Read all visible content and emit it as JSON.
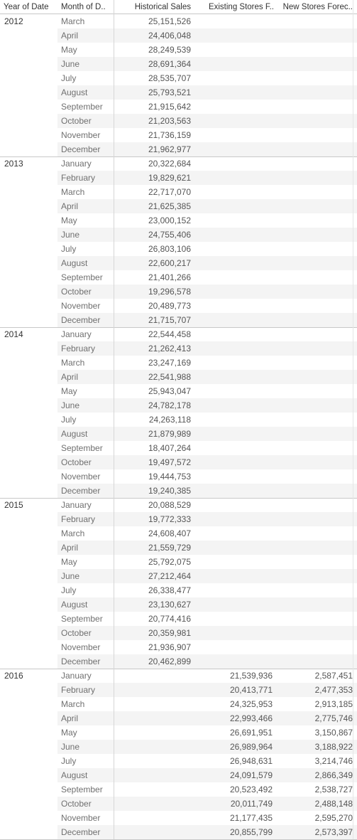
{
  "headers": {
    "year": "Year of Date",
    "month": "Month of D..",
    "historical": "Historical Sales",
    "existing": "Existing Stores F..",
    "new": "New Stores Forec.."
  },
  "years": [
    {
      "year": "2012",
      "rows": [
        {
          "month": "March",
          "historical": "25,151,526",
          "existing": "",
          "new": ""
        },
        {
          "month": "April",
          "historical": "24,406,048",
          "existing": "",
          "new": ""
        },
        {
          "month": "May",
          "historical": "28,249,539",
          "existing": "",
          "new": ""
        },
        {
          "month": "June",
          "historical": "28,691,364",
          "existing": "",
          "new": ""
        },
        {
          "month": "July",
          "historical": "28,535,707",
          "existing": "",
          "new": ""
        },
        {
          "month": "August",
          "historical": "25,793,521",
          "existing": "",
          "new": ""
        },
        {
          "month": "September",
          "historical": "21,915,642",
          "existing": "",
          "new": ""
        },
        {
          "month": "October",
          "historical": "21,203,563",
          "existing": "",
          "new": ""
        },
        {
          "month": "November",
          "historical": "21,736,159",
          "existing": "",
          "new": ""
        },
        {
          "month": "December",
          "historical": "21,962,977",
          "existing": "",
          "new": ""
        }
      ]
    },
    {
      "year": "2013",
      "rows": [
        {
          "month": "January",
          "historical": "20,322,684",
          "existing": "",
          "new": ""
        },
        {
          "month": "February",
          "historical": "19,829,621",
          "existing": "",
          "new": ""
        },
        {
          "month": "March",
          "historical": "22,717,070",
          "existing": "",
          "new": ""
        },
        {
          "month": "April",
          "historical": "21,625,385",
          "existing": "",
          "new": ""
        },
        {
          "month": "May",
          "historical": "23,000,152",
          "existing": "",
          "new": ""
        },
        {
          "month": "June",
          "historical": "24,755,406",
          "existing": "",
          "new": ""
        },
        {
          "month": "July",
          "historical": "26,803,106",
          "existing": "",
          "new": ""
        },
        {
          "month": "August",
          "historical": "22,600,217",
          "existing": "",
          "new": ""
        },
        {
          "month": "September",
          "historical": "21,401,266",
          "existing": "",
          "new": ""
        },
        {
          "month": "October",
          "historical": "19,296,578",
          "existing": "",
          "new": ""
        },
        {
          "month": "November",
          "historical": "20,489,773",
          "existing": "",
          "new": ""
        },
        {
          "month": "December",
          "historical": "21,715,707",
          "existing": "",
          "new": ""
        }
      ]
    },
    {
      "year": "2014",
      "rows": [
        {
          "month": "January",
          "historical": "22,544,458",
          "existing": "",
          "new": ""
        },
        {
          "month": "February",
          "historical": "21,262,413",
          "existing": "",
          "new": ""
        },
        {
          "month": "March",
          "historical": "23,247,169",
          "existing": "",
          "new": ""
        },
        {
          "month": "April",
          "historical": "22,541,988",
          "existing": "",
          "new": ""
        },
        {
          "month": "May",
          "historical": "25,943,047",
          "existing": "",
          "new": ""
        },
        {
          "month": "June",
          "historical": "24,782,178",
          "existing": "",
          "new": ""
        },
        {
          "month": "July",
          "historical": "24,263,118",
          "existing": "",
          "new": ""
        },
        {
          "month": "August",
          "historical": "21,879,989",
          "existing": "",
          "new": ""
        },
        {
          "month": "September",
          "historical": "18,407,264",
          "existing": "",
          "new": ""
        },
        {
          "month": "October",
          "historical": "19,497,572",
          "existing": "",
          "new": ""
        },
        {
          "month": "November",
          "historical": "19,444,753",
          "existing": "",
          "new": ""
        },
        {
          "month": "December",
          "historical": "19,240,385",
          "existing": "",
          "new": ""
        }
      ]
    },
    {
      "year": "2015",
      "rows": [
        {
          "month": "January",
          "historical": "20,088,529",
          "existing": "",
          "new": ""
        },
        {
          "month": "February",
          "historical": "19,772,333",
          "existing": "",
          "new": ""
        },
        {
          "month": "March",
          "historical": "24,608,407",
          "existing": "",
          "new": ""
        },
        {
          "month": "April",
          "historical": "21,559,729",
          "existing": "",
          "new": ""
        },
        {
          "month": "May",
          "historical": "25,792,075",
          "existing": "",
          "new": ""
        },
        {
          "month": "June",
          "historical": "27,212,464",
          "existing": "",
          "new": ""
        },
        {
          "month": "July",
          "historical": "26,338,477",
          "existing": "",
          "new": ""
        },
        {
          "month": "August",
          "historical": "23,130,627",
          "existing": "",
          "new": ""
        },
        {
          "month": "September",
          "historical": "20,774,416",
          "existing": "",
          "new": ""
        },
        {
          "month": "October",
          "historical": "20,359,981",
          "existing": "",
          "new": ""
        },
        {
          "month": "November",
          "historical": "21,936,907",
          "existing": "",
          "new": ""
        },
        {
          "month": "December",
          "historical": "20,462,899",
          "existing": "",
          "new": ""
        }
      ]
    },
    {
      "year": "2016",
      "rows": [
        {
          "month": "January",
          "historical": "",
          "existing": "21,539,936",
          "new": "2,587,451"
        },
        {
          "month": "February",
          "historical": "",
          "existing": "20,413,771",
          "new": "2,477,353"
        },
        {
          "month": "March",
          "historical": "",
          "existing": "24,325,953",
          "new": "2,913,185"
        },
        {
          "month": "April",
          "historical": "",
          "existing": "22,993,466",
          "new": "2,775,746"
        },
        {
          "month": "May",
          "historical": "",
          "existing": "26,691,951",
          "new": "3,150,867"
        },
        {
          "month": "June",
          "historical": "",
          "existing": "26,989,964",
          "new": "3,188,922"
        },
        {
          "month": "July",
          "historical": "",
          "existing": "26,948,631",
          "new": "3,214,746"
        },
        {
          "month": "August",
          "historical": "",
          "existing": "24,091,579",
          "new": "2,866,349"
        },
        {
          "month": "September",
          "historical": "",
          "existing": "20,523,492",
          "new": "2,538,727"
        },
        {
          "month": "October",
          "historical": "",
          "existing": "20,011,749",
          "new": "2,488,148"
        },
        {
          "month": "November",
          "historical": "",
          "existing": "21,177,435",
          "new": "2,595,270"
        },
        {
          "month": "December",
          "historical": "",
          "existing": "20,855,799",
          "new": "2,573,397"
        }
      ]
    }
  ]
}
